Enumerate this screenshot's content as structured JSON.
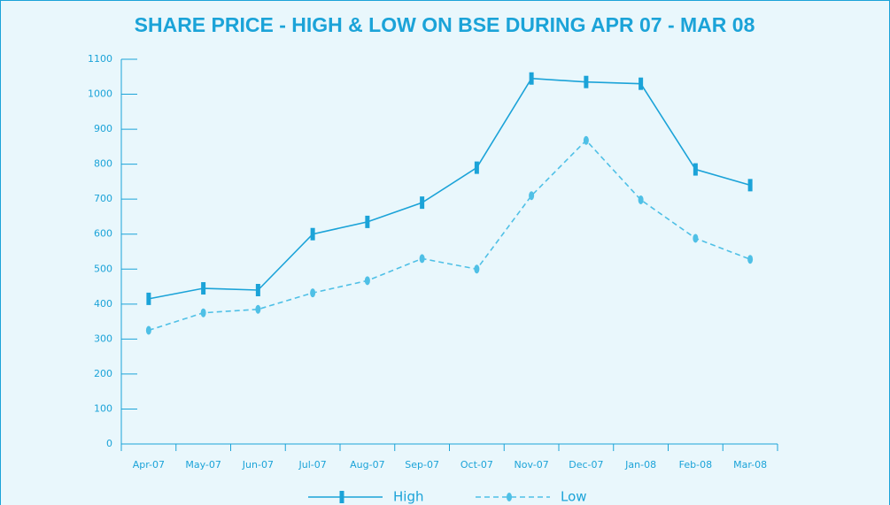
{
  "chart_data": {
    "type": "line",
    "title": "SHARE PRICE - HIGH & LOW ON BSE DURING APR 07 - MAR 08",
    "categories": [
      "Apr-07",
      "May-07",
      "Jun-07",
      "Jul-07",
      "Aug-07",
      "Sep-07",
      "Oct-07",
      "Nov-07",
      "Dec-07",
      "Jan-08",
      "Feb-08",
      "Mar-08"
    ],
    "series": [
      {
        "name": "High",
        "color": "#1ba3d8",
        "values": [
          415,
          445,
          440,
          600,
          635,
          690,
          790,
          1045,
          1035,
          1030,
          785,
          740
        ]
      },
      {
        "name": "Low",
        "color": "#4fc0e6",
        "values": [
          325,
          375,
          385,
          432,
          467,
          530,
          500,
          710,
          868,
          698,
          588,
          528
        ]
      }
    ],
    "ylim": [
      0,
      1100
    ],
    "yticks": [
      0,
      100,
      200,
      300,
      400,
      500,
      600,
      700,
      800,
      900,
      1000,
      1100
    ],
    "grid": false,
    "legend": "bottom"
  }
}
